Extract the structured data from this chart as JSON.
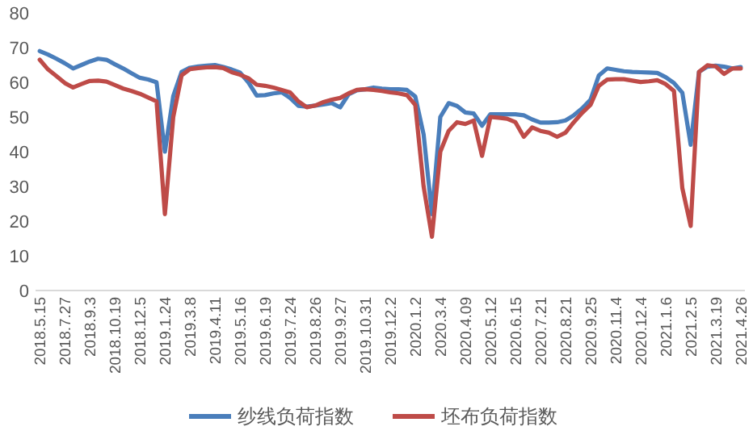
{
  "chart_data": {
    "type": "line",
    "categories": [
      "2018.5.15",
      null,
      null,
      "2018.7.27",
      null,
      null,
      "2018.9.3",
      null,
      null,
      "2018.10.19",
      null,
      null,
      "2018.12.5",
      null,
      null,
      "2019.1.24",
      null,
      null,
      "2019.3.8",
      null,
      null,
      "2019.4.11",
      null,
      null,
      "2019.5.16",
      null,
      null,
      "2019.6.19",
      null,
      null,
      "2019.7.24",
      null,
      null,
      "2019.8.26",
      null,
      null,
      "2019.9.27",
      null,
      null,
      "2019.10.31",
      null,
      null,
      "2019.12.2",
      null,
      null,
      "2020.1.2",
      null,
      null,
      "2020.3.4",
      null,
      null,
      "2020.4.09",
      null,
      null,
      "2020.5.12",
      null,
      null,
      "2020.6.15",
      null,
      null,
      "2020.7.21",
      null,
      null,
      "2020.8.21",
      null,
      null,
      "2020.9.25",
      null,
      null,
      "2020.11.4",
      null,
      null,
      "2020.12.4",
      null,
      null,
      "2021.1.6",
      null,
      null,
      "2021.2.5",
      null,
      null,
      "2021.3.19",
      null,
      null,
      "2021.4.26"
    ],
    "series": [
      {
        "name": "纱线负荷指数",
        "color": "#4a7ebb",
        "values": [
          69,
          68,
          66.8,
          65.5,
          64,
          65,
          66,
          66.8,
          66.5,
          65.2,
          64,
          62.6,
          61.3,
          60.8,
          60,
          40,
          56,
          63,
          64.2,
          64.6,
          64.8,
          65,
          64.4,
          63.7,
          62.8,
          60,
          56.2,
          56.3,
          56.8,
          57.1,
          55.5,
          53.2,
          53,
          53.3,
          53.6,
          54,
          52.8,
          56.5,
          57.7,
          58,
          58.5,
          58.2,
          58,
          58,
          57.8,
          55.9,
          45,
          22,
          50,
          54,
          53.2,
          51.3,
          51,
          47.5,
          50.8,
          50.8,
          50.8,
          50.8,
          50.5,
          49.3,
          48.4,
          48.4,
          48.5,
          49,
          50.5,
          52.5,
          55,
          62,
          64,
          63.6,
          63.2,
          63,
          62.9,
          62.8,
          62.7,
          61.5,
          59.8,
          57,
          42,
          63,
          64.5,
          64.8,
          64.5,
          64,
          64.4
        ]
      },
      {
        "name": "坯布负荷指数",
        "color": "#be4b48",
        "values": [
          66.5,
          63.7,
          61.8,
          59.8,
          58.5,
          59.5,
          60.4,
          60.5,
          60.2,
          59.2,
          58.2,
          57.5,
          56.7,
          55.6,
          54.5,
          22,
          50,
          62,
          63.8,
          64.1,
          64.3,
          64.4,
          64.1,
          62.9,
          62.2,
          61.2,
          59.3,
          59,
          58.5,
          57.8,
          57.1,
          54.5,
          52.8,
          53.3,
          54.3,
          55,
          55.5,
          56.8,
          57.8,
          58,
          57.8,
          57.5,
          57.1,
          56.8,
          56.3,
          53.5,
          30,
          15.5,
          40,
          46,
          48.5,
          48,
          49,
          38.8,
          50,
          49.8,
          49.5,
          48.5,
          44.3,
          47,
          46,
          45.5,
          44.3,
          45.5,
          48.5,
          51.2,
          53.5,
          59,
          60.8,
          60.9,
          60.9,
          60.5,
          60.1,
          60.3,
          60.6,
          59.5,
          57.5,
          29.5,
          18.6,
          63,
          64.9,
          64.6,
          62.4,
          64,
          64
        ]
      }
    ],
    "ylim": [
      0,
      80
    ],
    "yticks": [
      0,
      10,
      20,
      30,
      40,
      50,
      60,
      70,
      80
    ],
    "legend": "bottom"
  }
}
